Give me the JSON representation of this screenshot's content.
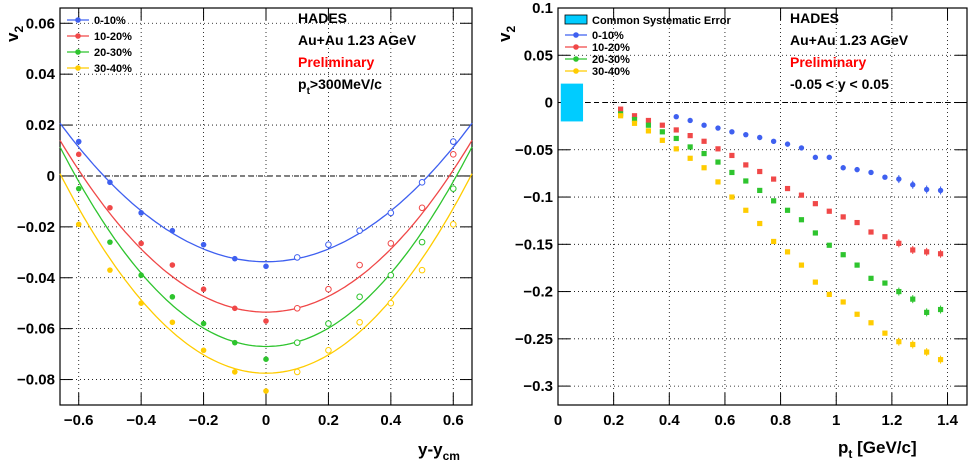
{
  "chart_data": [
    {
      "type": "scatter",
      "xlabel": "y-y",
      "xlabel_sub": "cm",
      "ylabel": "v",
      "ylabel_sub": "2",
      "xlim": [
        -0.66,
        0.66
      ],
      "ylim": [
        -0.09,
        0.066
      ],
      "xticks": [
        -0.6,
        -0.4,
        -0.2,
        0,
        0.2,
        0.4,
        0.6
      ],
      "xtick_labels": [
        "−0.6",
        "−0.4",
        "−0.2",
        "0",
        "0.2",
        "0.4",
        "0.6"
      ],
      "yticks": [
        -0.08,
        -0.06,
        -0.04,
        -0.02,
        0,
        0.02,
        0.04,
        0.06
      ],
      "ytick_labels": [
        "−0.08",
        "−0.06",
        "−0.04",
        "−0.02",
        "0",
        "0.02",
        "0.04",
        "0.06"
      ],
      "grid": true,
      "legend_position": "top-left",
      "annotations": [
        {
          "text": "HADES",
          "color": "#000000"
        },
        {
          "text": "Au+Au 1.23 AGeV",
          "color": "#000000"
        },
        {
          "text": "Preliminary",
          "color": "#ff0000"
        },
        {
          "text": "p",
          "sub": "t",
          "rest": ">300MeV/c",
          "color": "#000000"
        }
      ],
      "series": [
        {
          "name": "0-10%",
          "color": "#3f60f0",
          "x_filled": [
            -0.6,
            -0.5,
            -0.4,
            -0.3,
            -0.2,
            -0.1,
            0.0
          ],
          "y_filled": [
            0.0135,
            -0.0025,
            -0.0145,
            -0.0215,
            -0.027,
            -0.0325,
            -0.0355
          ],
          "x_open": [
            0.1,
            0.2,
            0.3,
            0.4,
            0.5,
            0.6
          ],
          "y_open": [
            -0.032,
            -0.027,
            -0.0215,
            -0.0145,
            -0.0025,
            0.0135
          ],
          "fit": {
            "a": -0.0337,
            "b": 0.125
          }
        },
        {
          "name": "10-20%",
          "color": "#f04848",
          "x_filled": [
            -0.6,
            -0.5,
            -0.4,
            -0.3,
            -0.2,
            -0.1,
            0.0
          ],
          "y_filled": [
            0.0085,
            -0.0125,
            -0.0265,
            -0.035,
            -0.0445,
            -0.052,
            -0.057
          ],
          "x_open": [
            0.1,
            0.2,
            0.3,
            0.4,
            0.5,
            0.6
          ],
          "y_open": [
            -0.052,
            -0.0445,
            -0.035,
            -0.0265,
            -0.0125,
            0.0085
          ],
          "fit": {
            "a": -0.0535,
            "b": 0.155
          }
        },
        {
          "name": "20-30%",
          "color": "#2ec42e",
          "x_filled": [
            -0.6,
            -0.5,
            -0.4,
            -0.3,
            -0.2,
            -0.1,
            0.0
          ],
          "y_filled": [
            -0.005,
            -0.026,
            -0.039,
            -0.0475,
            -0.058,
            -0.0655,
            -0.072
          ],
          "x_open": [
            0.1,
            0.2,
            0.3,
            0.4,
            0.5,
            0.6
          ],
          "y_open": [
            -0.0655,
            -0.058,
            -0.0475,
            -0.039,
            -0.026,
            -0.005
          ],
          "fit": {
            "a": -0.067,
            "b": 0.18
          }
        },
        {
          "name": "30-40%",
          "color": "#ffcc00",
          "x_filled": [
            -0.6,
            -0.5,
            -0.4,
            -0.3,
            -0.2,
            -0.1,
            0.0
          ],
          "y_filled": [
            -0.019,
            -0.037,
            -0.05,
            -0.0575,
            -0.0685,
            -0.077,
            -0.0845
          ],
          "x_open": [
            0.1,
            0.2,
            0.3,
            0.4,
            0.5,
            0.6
          ],
          "y_open": [
            -0.077,
            -0.0685,
            -0.0575,
            -0.05,
            -0.037,
            -0.019
          ],
          "fit": {
            "a": -0.0775,
            "b": 0.18
          }
        }
      ]
    },
    {
      "type": "scatter",
      "xlabel": "p",
      "xlabel_sub": "t",
      "xlabel_rest": " [GeV/c]",
      "ylabel": "v",
      "ylabel_sub": "2",
      "xlim": [
        0,
        1.47
      ],
      "ylim": [
        -0.32,
        0.1
      ],
      "xticks": [
        0,
        0.2,
        0.4,
        0.6,
        0.8,
        1,
        1.2,
        1.4
      ],
      "xtick_labels": [
        "0",
        "0.2",
        "0.4",
        "0.6",
        "0.8",
        "1",
        "1.2",
        "1.4"
      ],
      "yticks": [
        -0.3,
        -0.25,
        -0.2,
        -0.15,
        -0.1,
        -0.05,
        0,
        0.05,
        0.1
      ],
      "ytick_labels": [
        "−0.3",
        "−0.25",
        "−0.2",
        "−0.15",
        "−0.1",
        "−0.05",
        "0",
        "0.05",
        "0.1"
      ],
      "grid": true,
      "legend_position": "top-left",
      "systematic_label": "Common Systematic Error",
      "systematic_color": "#00ccff",
      "systematic_band": {
        "x": [
          0.01,
          0.09
        ],
        "y": [
          -0.02,
          0.02
        ]
      },
      "annotations": [
        {
          "text": "HADES",
          "color": "#000000"
        },
        {
          "text": "Au+Au 1.23 AGeV",
          "color": "#000000"
        },
        {
          "text": "Preliminary",
          "color": "#ff0000"
        },
        {
          "text": "-0.05 < y < 0.05",
          "color": "#000000"
        }
      ],
      "x": [
        0.225,
        0.275,
        0.325,
        0.375,
        0.425,
        0.475,
        0.525,
        0.575,
        0.625,
        0.675,
        0.725,
        0.775,
        0.825,
        0.875,
        0.925,
        0.975,
        1.025,
        1.075,
        1.125,
        1.175,
        1.225,
        1.275,
        1.325,
        1.375
      ],
      "series": [
        {
          "name": "0-10%",
          "color": "#3f60f0",
          "values": [
            null,
            null,
            null,
            null,
            -0.015,
            -0.019,
            -0.024,
            -0.027,
            -0.031,
            -0.034,
            -0.037,
            -0.041,
            -0.044,
            -0.048,
            -0.058,
            -0.058,
            -0.069,
            -0.071,
            -0.074,
            -0.079,
            -0.081,
            -0.087,
            -0.092,
            -0.093
          ]
        },
        {
          "name": "10-20%",
          "color": "#f04848",
          "values": [
            -0.007,
            -0.014,
            -0.019,
            -0.024,
            -0.029,
            -0.035,
            -0.041,
            -0.049,
            -0.056,
            -0.066,
            -0.073,
            -0.081,
            -0.091,
            -0.098,
            -0.107,
            -0.115,
            -0.121,
            -0.127,
            -0.137,
            -0.142,
            -0.149,
            -0.156,
            -0.158,
            -0.16
          ]
        },
        {
          "name": "20-30%",
          "color": "#2ec42e",
          "values": [
            -0.012,
            -0.018,
            -0.024,
            -0.031,
            -0.038,
            -0.047,
            -0.054,
            -0.063,
            -0.074,
            -0.083,
            -0.093,
            -0.104,
            -0.114,
            -0.124,
            -0.138,
            -0.151,
            -0.161,
            -0.172,
            -0.186,
            -0.191,
            -0.2,
            -0.208,
            -0.222,
            -0.219
          ]
        },
        {
          "name": "30-40%",
          "color": "#ffcc00",
          "values": [
            -0.014,
            -0.022,
            -0.03,
            -0.04,
            -0.049,
            -0.059,
            -0.069,
            -0.084,
            -0.1,
            -0.114,
            -0.128,
            -0.147,
            -0.158,
            -0.172,
            -0.19,
            -0.203,
            -0.211,
            -0.224,
            -0.233,
            -0.244,
            -0.253,
            -0.256,
            -0.264,
            -0.272
          ]
        }
      ]
    }
  ]
}
